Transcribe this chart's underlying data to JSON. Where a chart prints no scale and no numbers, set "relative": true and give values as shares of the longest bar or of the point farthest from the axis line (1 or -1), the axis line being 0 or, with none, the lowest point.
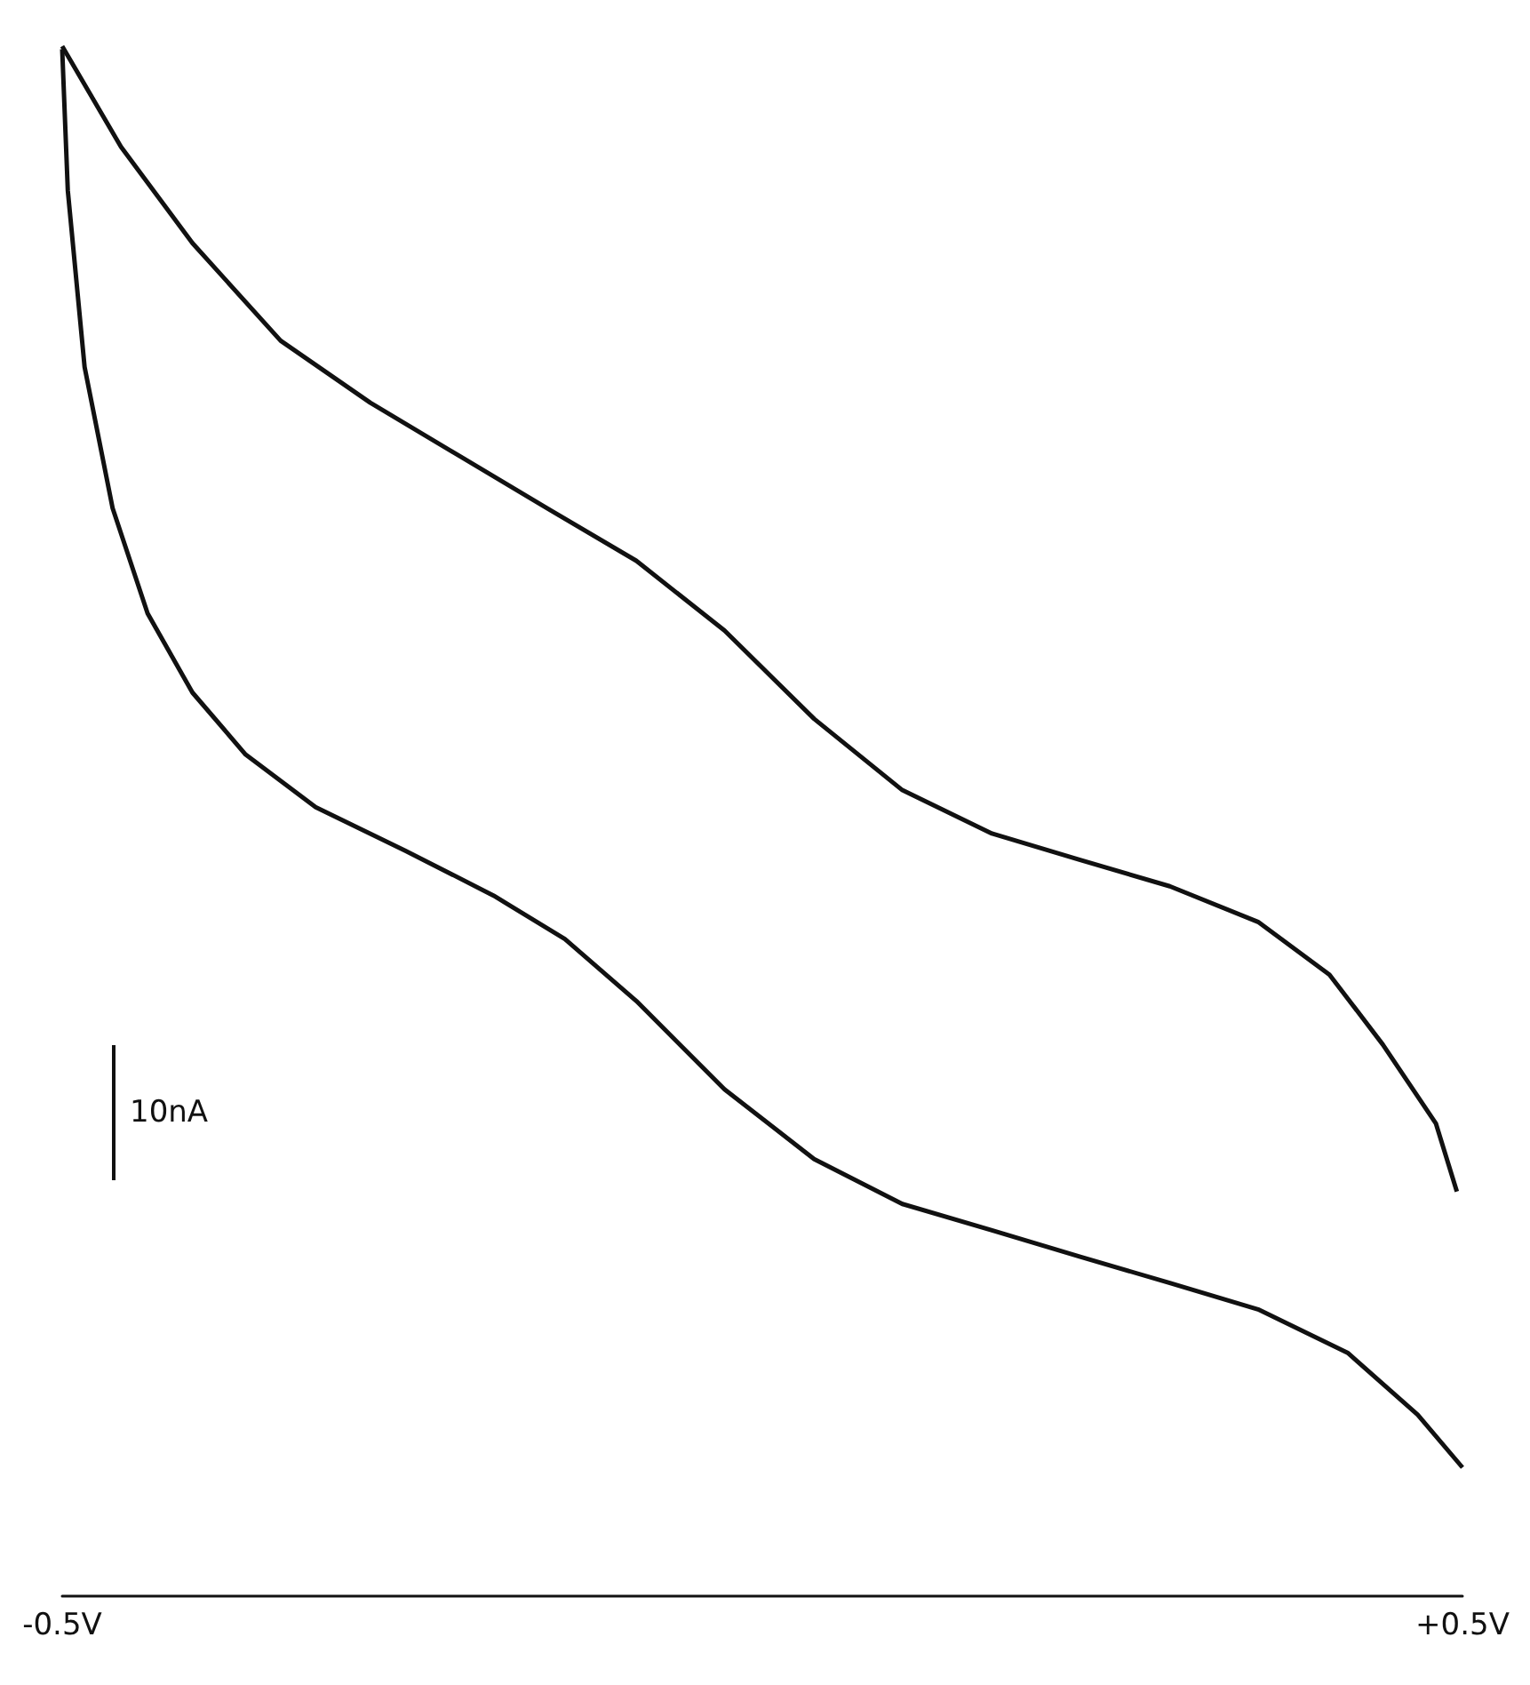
{
  "chart_data": {
    "type": "line",
    "relative": true,
    "xlim": [
      -0.5,
      0.5
    ],
    "xticks": [
      {
        "value": -0.5,
        "label": "-0.5V"
      },
      {
        "value": 0.5,
        "label": "+0.5V"
      }
    ],
    "grid": false,
    "marker": "none",
    "annotations": [
      "10nA"
    ],
    "series": [
      {
        "color": "#111111",
        "x": [
          -0.5,
          -0.458,
          -0.407,
          -0.344,
          -0.28,
          -0.217,
          -0.154,
          -0.09,
          -0.027,
          0.037,
          0.1,
          0.164,
          0.227,
          0.291,
          0.354,
          0.405,
          0.443,
          0.481,
          0.496
        ],
        "values": [
          1.0,
          0.935,
          0.873,
          0.81,
          0.77,
          0.736,
          0.702,
          0.668,
          0.623,
          0.566,
          0.52,
          0.492,
          0.475,
          0.458,
          0.435,
          0.401,
          0.356,
          0.305,
          0.261
        ]
      },
      {
        "color": "#111111",
        "x": [
          -0.5,
          -0.496,
          -0.484,
          -0.464,
          -0.439,
          -0.407,
          -0.369,
          -0.319,
          -0.255,
          -0.192,
          -0.141,
          -0.09,
          -0.027,
          0.037,
          0.1,
          0.164,
          0.227,
          0.291,
          0.354,
          0.418,
          0.468,
          0.5
        ],
        "values": [
          0.998,
          0.907,
          0.793,
          0.702,
          0.634,
          0.583,
          0.543,
          0.509,
          0.481,
          0.452,
          0.424,
          0.384,
          0.327,
          0.282,
          0.253,
          0.236,
          0.219,
          0.202,
          0.185,
          0.157,
          0.117,
          0.083
        ]
      }
    ]
  }
}
